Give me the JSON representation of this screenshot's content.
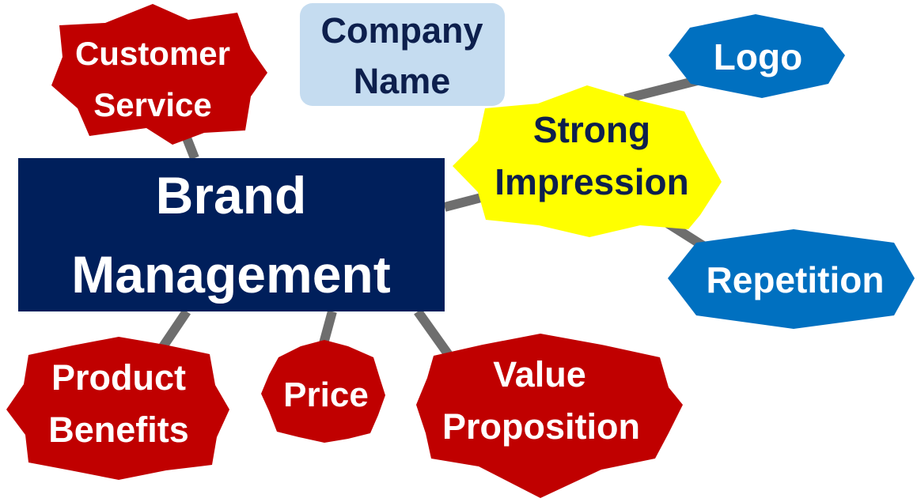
{
  "diagram": {
    "central": {
      "line1": "Brand",
      "line2": "Management",
      "fill": "#001f5b",
      "text_color": "#ffffff"
    },
    "company_name": {
      "line1": "Company",
      "line2": "Name",
      "fill": "#c5dcf0",
      "text_color": "#0d1f4d"
    },
    "customer_service": {
      "line1": "Customer",
      "line2": "Service"
    },
    "product_benefits": {
      "line1": "Product",
      "line2": "Benefits"
    },
    "price": {
      "label": "Price"
    },
    "value_proposition": {
      "line1": "Value",
      "line2": "Proposition"
    },
    "strong_impression": {
      "line1": "Strong",
      "line2": "Impression",
      "fill": "#ffff00",
      "text_color": "#0d1f4d"
    },
    "logo": {
      "label": "Logo"
    },
    "repetition": {
      "label": "Repetition"
    },
    "colors": {
      "red_node": "#c00000",
      "blue_node": "#0070c0",
      "connector": "#6e6e6e",
      "white_text": "#ffffff"
    }
  }
}
